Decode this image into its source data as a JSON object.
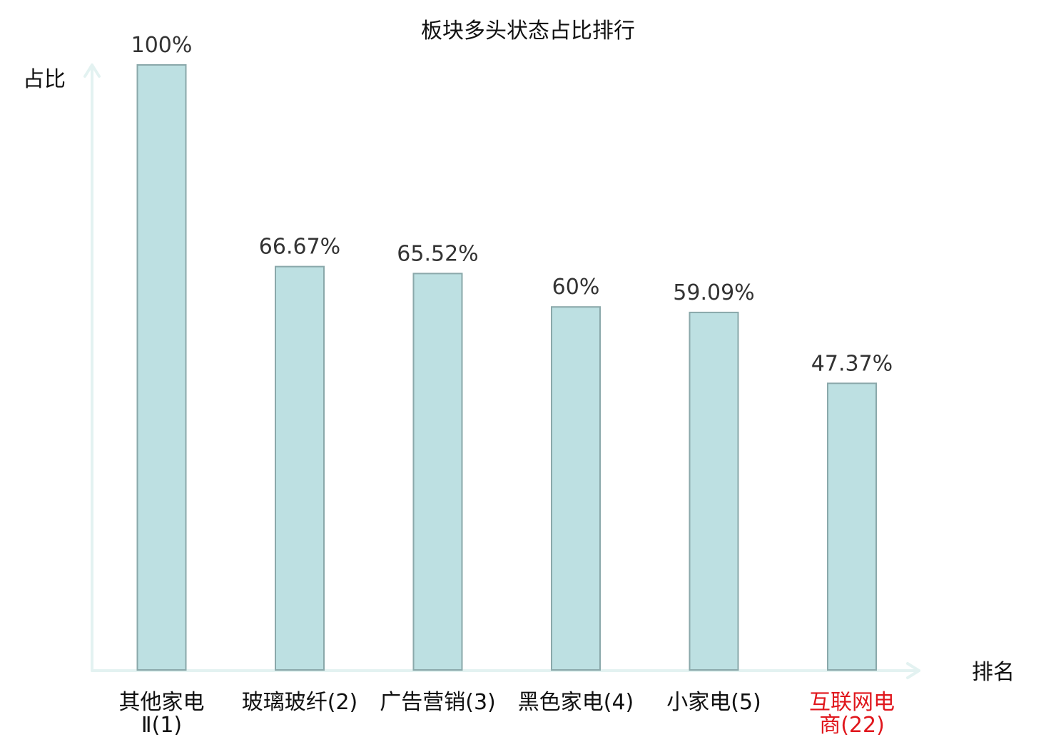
{
  "chart_data": {
    "type": "bar",
    "title": "板块多头状态占比排行",
    "ylabel": "占比",
    "xlabel": "排名",
    "ylim": [
      0,
      100
    ],
    "grid": false,
    "categories": [
      {
        "lines": [
          "其他家电",
          "Ⅱ(1)"
        ],
        "highlight": false
      },
      {
        "lines": [
          "玻璃玻纤(2)"
        ],
        "highlight": false
      },
      {
        "lines": [
          "广告营销(3)"
        ],
        "highlight": false
      },
      {
        "lines": [
          "黑色家电(4)"
        ],
        "highlight": false
      },
      {
        "lines": [
          "小家电(5)"
        ],
        "highlight": false
      },
      {
        "lines": [
          "互联网电",
          "商(22)"
        ],
        "highlight": true
      }
    ],
    "values": [
      100,
      66.67,
      65.52,
      60,
      59.09,
      47.37
    ],
    "value_labels": [
      "100%",
      "66.67%",
      "65.52%",
      "60%",
      "59.09%",
      "47.37%"
    ],
    "colors": {
      "bar_fill": "#bde0e2",
      "bar_stroke": "#8aa8aa",
      "axis": "#e3f2f1",
      "label": "#111111",
      "highlight": "#e0161c"
    }
  }
}
